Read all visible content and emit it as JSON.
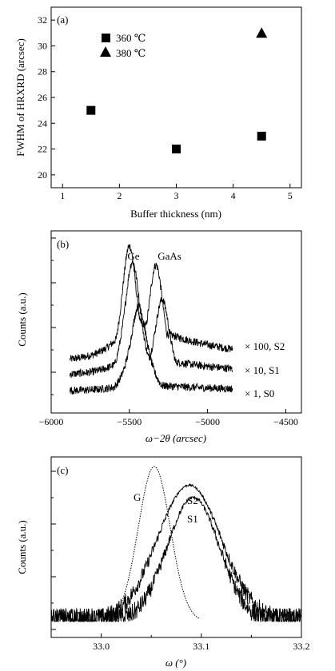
{
  "chart_data": [
    {
      "type": "scatter",
      "panel_label": "(a)",
      "xlabel": "Buffer thickness (nm)",
      "ylabel": "FWHM of HRXRD (arcsec)",
      "xlim": [
        0.8,
        5.2
      ],
      "ylim": [
        19,
        33
      ],
      "x_ticks": [
        "1",
        "2",
        "3",
        "4",
        "5"
      ],
      "y_ticks": [
        "20",
        "22",
        "24",
        "26",
        "28",
        "30",
        "32"
      ],
      "grid": false,
      "legend_position": "top-left",
      "series": [
        {
          "name": "360 ℃",
          "marker": "square",
          "points": [
            [
              1.5,
              25.0
            ],
            [
              3.0,
              22.0
            ],
            [
              4.5,
              23.0
            ]
          ]
        },
        {
          "name": "380 ℃",
          "marker": "triangle",
          "points": [
            [
              4.5,
              31.0
            ]
          ]
        }
      ]
    },
    {
      "type": "line",
      "panel_label": "(b)",
      "xlabel": "ω−2θ (arcsec)",
      "ylabel": "Counts (a.u.)",
      "xlim": [
        -6000,
        -4400
      ],
      "x_ticks": [
        "−6000",
        "−5500",
        "−5000",
        "−4500"
      ],
      "y_scale": "log",
      "grid": false,
      "peak_labels": [
        "Ge",
        "GaAs"
      ],
      "series": [
        {
          "name": "× 100, S2",
          "peaks": [
            {
              "x": -5500,
              "height": 1.0
            },
            {
              "x": -5330,
              "height": 0.88
            }
          ],
          "background": 0.27,
          "tail": 0.55
        },
        {
          "name": "× 10, S1",
          "peaks": [
            {
              "x": -5480,
              "height": 0.9
            },
            {
              "x": -5290,
              "height": 0.66
            }
          ],
          "background": 0.18,
          "tail": 0.33
        },
        {
          "name": "× 1, S0",
          "peaks": [
            {
              "x": -5440,
              "height": 0.62
            }
          ],
          "background": 0.08,
          "tail": 0.13
        }
      ]
    },
    {
      "type": "line",
      "panel_label": "(c)",
      "xlabel": "ω (°)",
      "ylabel": "Counts (a.u.)",
      "xlim": [
        32.95,
        33.2
      ],
      "x_ticks": [
        "33.0",
        "33.1",
        "33.2"
      ],
      "y_scale": "log",
      "grid": false,
      "series": [
        {
          "name": "G",
          "style": "dotted",
          "center": 33.053,
          "width": 0.016,
          "height": 1.0
        },
        {
          "name": "S2",
          "style": "solid",
          "center": 33.088,
          "width": 0.032,
          "height": 0.88
        },
        {
          "name": "S1",
          "style": "solid",
          "center": 33.092,
          "width": 0.026,
          "height": 0.8
        }
      ]
    }
  ]
}
